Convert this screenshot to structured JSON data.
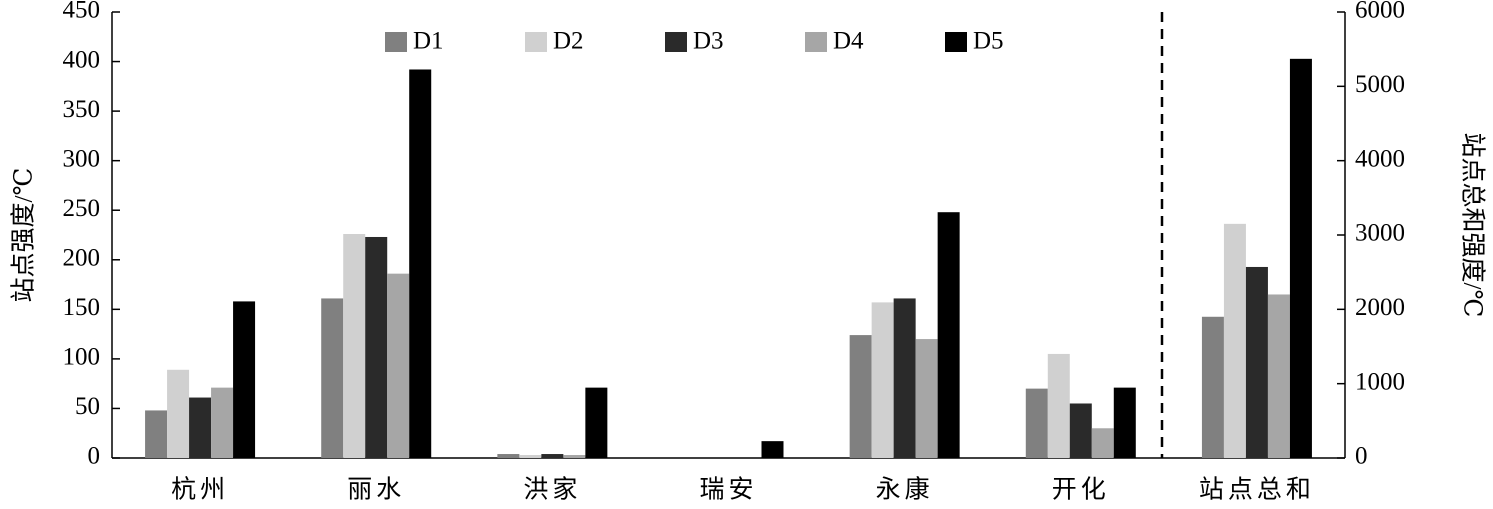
{
  "chart_data": [
    {
      "type": "bar",
      "ylabel": "站点强度/℃",
      "categories": [
        "杭州",
        "丽水",
        "洪家",
        "瑞安",
        "永康",
        "开化"
      ],
      "series": [
        {
          "name": "D1",
          "color": "#808080",
          "values": [
            48,
            161,
            4,
            0,
            124,
            70
          ]
        },
        {
          "name": "D2",
          "color": "#d0d0d0",
          "values": [
            89,
            226,
            3,
            0,
            157,
            105
          ]
        },
        {
          "name": "D3",
          "color": "#2a2a2a",
          "values": [
            61,
            223,
            4,
            0,
            161,
            55
          ]
        },
        {
          "name": "D4",
          "color": "#a6a6a6",
          "values": [
            71,
            186,
            3,
            0,
            120,
            30
          ]
        },
        {
          "name": "D5",
          "color": "#000000",
          "values": [
            158,
            392,
            71,
            17,
            248,
            71
          ]
        }
      ],
      "ylim": [
        0,
        450
      ],
      "yticks": [
        0,
        50,
        100,
        150,
        200,
        250,
        300,
        350,
        400,
        450
      ],
      "legend": "top"
    },
    {
      "type": "bar",
      "y2label": "站点总和强度/℃",
      "categories": [
        "站点总和"
      ],
      "series": [
        {
          "color": "#808080",
          "axis": "y2",
          "values": [
            1900
          ]
        },
        {
          "color": "#d0d0d0",
          "axis": "y2",
          "values": [
            3150
          ]
        },
        {
          "color": "#2a2a2a",
          "axis": "y2",
          "values": [
            2570
          ]
        },
        {
          "color": "#a6a6a6",
          "axis": "y2",
          "values": [
            2200
          ]
        },
        {
          "color": "#000000",
          "axis": "y2",
          "values": [
            5370
          ]
        }
      ],
      "y2lim": [
        0,
        6000
      ],
      "y2ticks": [
        0,
        1000,
        2000,
        3000,
        4000,
        5000,
        6000
      ]
    }
  ]
}
